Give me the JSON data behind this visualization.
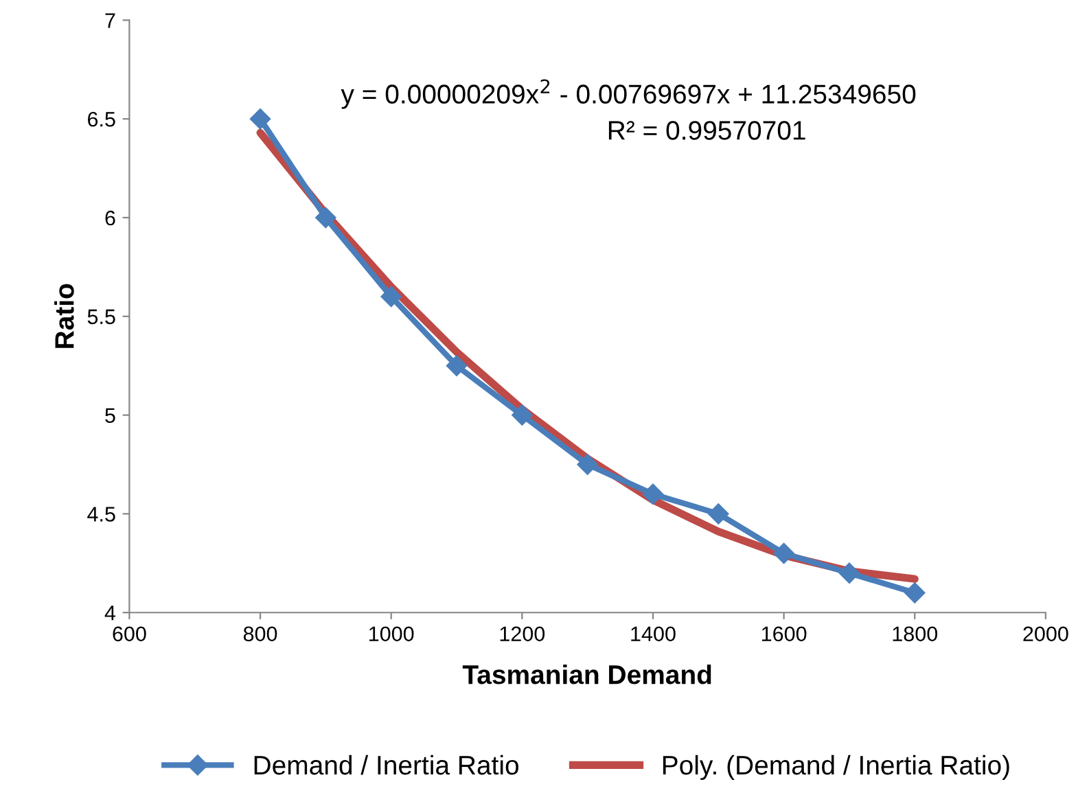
{
  "chart_data": {
    "type": "line",
    "xlabel": "Tasmanian Demand",
    "ylabel": "Ratio",
    "x": [
      800,
      900,
      1000,
      1100,
      1200,
      1300,
      1400,
      1500,
      1600,
      1700,
      1800
    ],
    "series": [
      {
        "name": "Demand / Inertia Ratio",
        "color": "#4a7ebb",
        "marker": "diamond",
        "values": [
          6.5,
          6.0,
          5.6,
          5.25,
          5.0,
          4.75,
          4.6,
          4.5,
          4.3,
          4.2,
          4.1
        ]
      },
      {
        "name": "Poly. (Demand / Inertia Ratio)",
        "color": "#be4b48",
        "marker": "none",
        "values": [
          6.43,
          6.02,
          5.65,
          5.32,
          5.03,
          4.78,
          4.57,
          4.41,
          4.29,
          4.21,
          4.17
        ]
      }
    ],
    "annotations": [
      "y = 0.00000209x$^{2}$ - 0.00769697x + 11.25349650",
      "R² = 0.99570701"
    ],
    "xlim": [
      600,
      2000
    ],
    "xticks": [
      600,
      800,
      1000,
      1200,
      1400,
      1600,
      1800,
      2000
    ],
    "ylim": [
      4,
      7
    ],
    "yticks": [
      4,
      4.5,
      5,
      5.5,
      6,
      6.5,
      7
    ],
    "grid": false,
    "legend": "bottom",
    "line_style": "solid"
  }
}
